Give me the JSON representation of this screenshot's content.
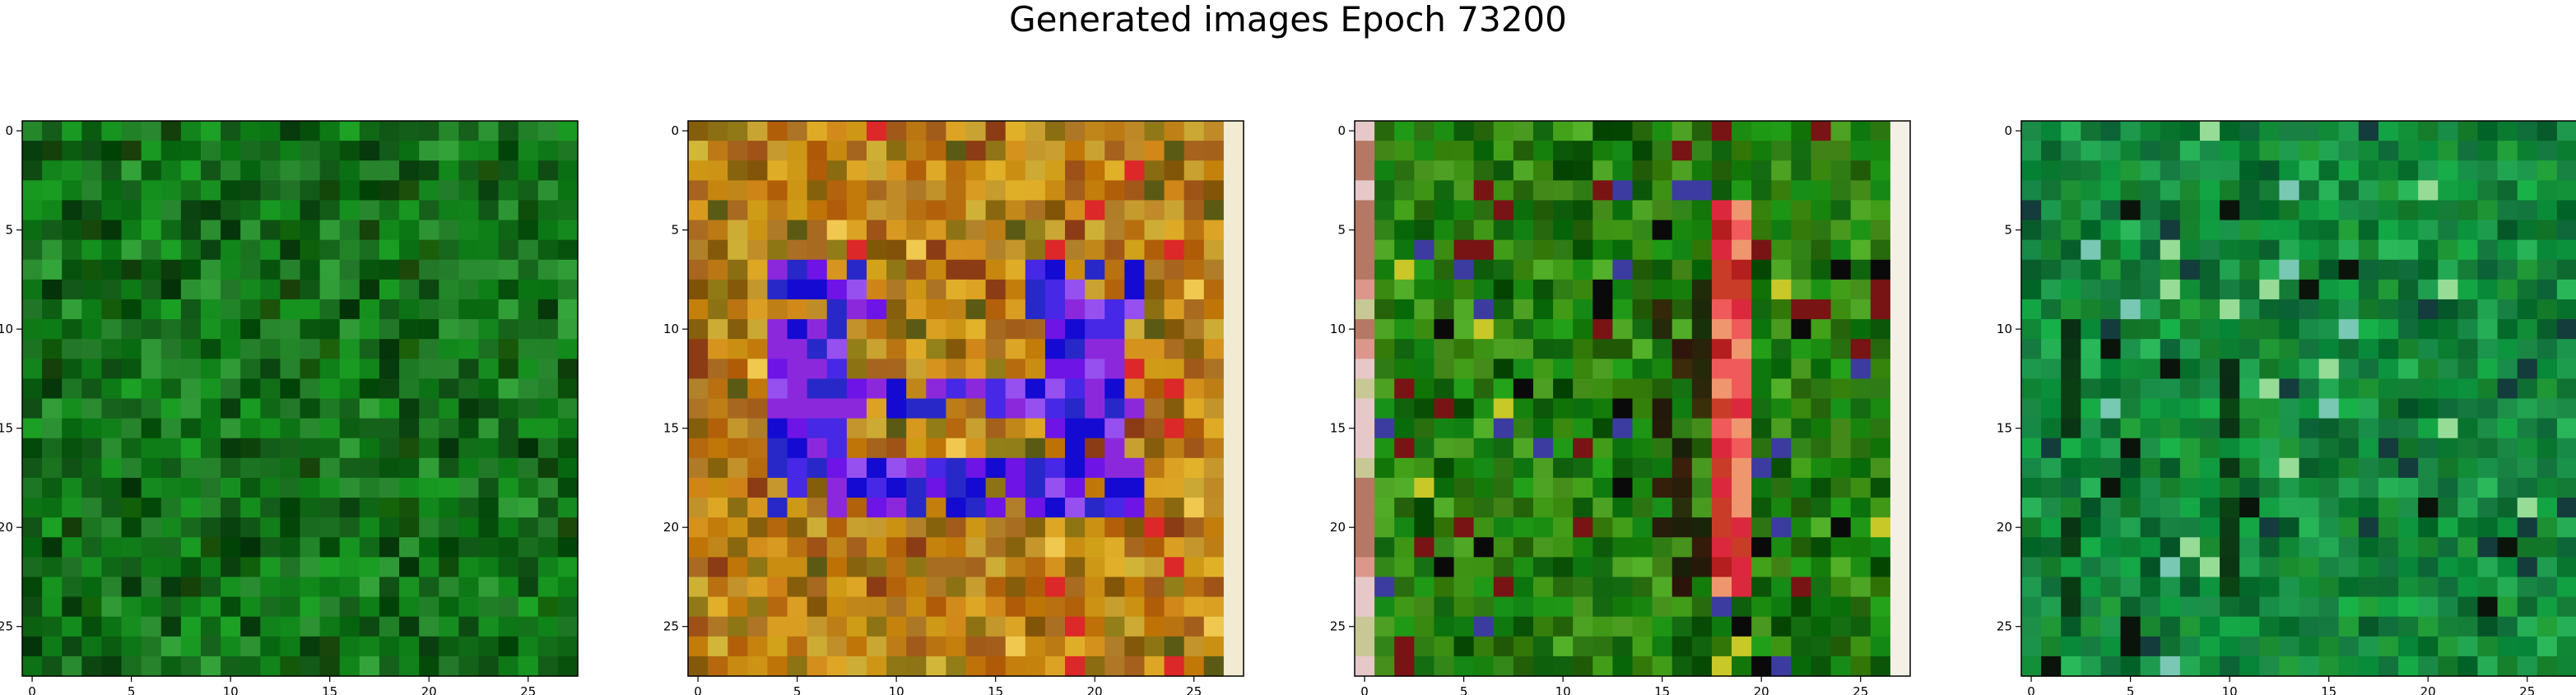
{
  "title": "Generated images Epoch 73200",
  "chart_data": [
    {
      "type": "heatmap",
      "description": "28x28 RGB generated image, predominantly green noise",
      "palette": [
        "#0a5a10",
        "#0f7a18",
        "#138a1c",
        "#1a6f20",
        "#0d4a12",
        "#2a8c30"
      ],
      "xlim": [
        -0.5,
        27.5
      ],
      "ylim": [
        27.5,
        -0.5
      ],
      "xticks": [
        0,
        5,
        10,
        15,
        20,
        25
      ],
      "yticks": [
        0,
        5,
        10,
        15,
        20,
        25
      ]
    },
    {
      "type": "heatmap",
      "description": "28x28 RGB generated image, orange/brown background with purple-blue square outline",
      "palette": [
        "#c88a10",
        "#b87010",
        "#d89a20",
        "#a86a20",
        "#8a6a10",
        "#c8a030"
      ],
      "xlim": [
        -0.5,
        27.5
      ],
      "ylim": [
        27.5,
        -0.5
      ],
      "xticks": [
        0,
        5,
        10,
        15,
        20,
        25
      ],
      "yticks": [
        0,
        5,
        10,
        15,
        20,
        25
      ]
    },
    {
      "type": "heatmap",
      "description": "28x28 RGB generated image, green noise with red/dark vertical stroke near center-right",
      "palette": [
        "#1a8a10",
        "#0f7a10",
        "#3a8a10",
        "#0d5a0a",
        "#4a9a20",
        "#2a7010"
      ],
      "xlim": [
        -0.5,
        27.5
      ],
      "ylim": [
        27.5,
        -0.5
      ],
      "xticks": [
        0,
        5,
        10,
        15,
        20,
        25
      ],
      "yticks": [
        0,
        5,
        10,
        15,
        20,
        25
      ]
    },
    {
      "type": "heatmap",
      "description": "28x28 RGB generated image, teal-green noise with darker vertical bands",
      "palette": [
        "#0f9a40",
        "#1a8a30",
        "#0a7a30",
        "#20a050",
        "#157a40",
        "#0d6a30"
      ],
      "xlim": [
        -0.5,
        27.5
      ],
      "ylim": [
        27.5,
        -0.5
      ],
      "xticks": [
        0,
        5,
        10,
        15,
        20,
        25
      ],
      "yticks": [
        0,
        5,
        10,
        15,
        20,
        25
      ]
    }
  ]
}
